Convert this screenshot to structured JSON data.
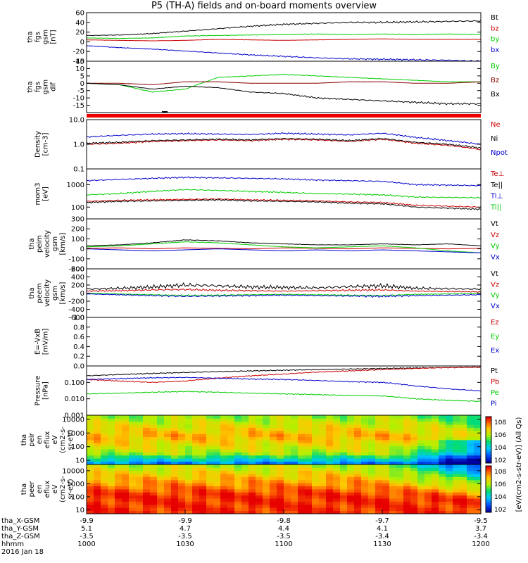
{
  "title": "P5 (TH-A) fields and on-board moments overview",
  "date_label": "2016 Jan 18",
  "colorbar_label": "[eV/(cm^2-s-str-eV)] (All Qs)",
  "colorbar_ticks": [
    "10^8",
    "10^6",
    "10^4",
    "10^2"
  ],
  "chart_data": [
    {
      "type": "line",
      "ylabel": [
        "tha",
        "fgs",
        "gsm",
        "[nT]"
      ],
      "ylim": [
        -40,
        60
      ],
      "yscale": "linear",
      "yticks": [
        -40,
        -20,
        0,
        20,
        40,
        60
      ],
      "series": [
        {
          "name": "Bt",
          "color": "#000000",
          "values": [
            13,
            14,
            17,
            22,
            27,
            32,
            36,
            38,
            40,
            40,
            41,
            42,
            43
          ]
        },
        {
          "name": "bz",
          "color": "#cc0000",
          "values": [
            4,
            3,
            2,
            3,
            5,
            4,
            3,
            4,
            5,
            6,
            5,
            5,
            5
          ]
        },
        {
          "name": "by",
          "color": "#00cc00",
          "values": [
            8,
            7,
            8,
            12,
            13,
            14,
            15,
            16,
            15,
            16,
            15,
            16,
            15
          ]
        },
        {
          "name": "bx",
          "color": "#0000cc",
          "values": [
            -8,
            -12,
            -15,
            -19,
            -23,
            -27,
            -30,
            -33,
            -35,
            -36,
            -37,
            -38,
            -40
          ]
        }
      ]
    },
    {
      "type": "line",
      "ylabel": [
        "tha",
        "fgs",
        "gsm",
        "dif"
      ],
      "ylim": [
        -20,
        15
      ],
      "yscale": "linear",
      "yticks": [
        -15,
        -10,
        -5,
        0,
        5,
        10,
        15
      ],
      "series": [
        {
          "name": "By",
          "color": "#00cc00",
          "values": [
            0,
            -1,
            -6,
            -4,
            4,
            5,
            6,
            5,
            4,
            3,
            2,
            1,
            1
          ]
        },
        {
          "name": "Bz",
          "color": "#880000",
          "values": [
            0,
            0,
            -1,
            1,
            1,
            0,
            0,
            0,
            1,
            1,
            0,
            0,
            1
          ]
        },
        {
          "name": "Bx",
          "color": "#000000",
          "values": [
            0,
            -1,
            -4,
            -2,
            -3,
            -6,
            -7,
            -10,
            -11,
            -12,
            -13,
            -14,
            -14
          ]
        }
      ]
    },
    {
      "type": "line",
      "ylabel": [
        "Density",
        "[cm-3]"
      ],
      "ylim": [
        0.1,
        10
      ],
      "yscale": "log",
      "yticks": [
        0.1,
        1.0,
        10.0
      ],
      "ytick_labels": [
        "0.1",
        "1.0",
        "10.0"
      ],
      "series": [
        {
          "name": "Ne",
          "color": "#cc0000",
          "values": [
            1.0,
            1.1,
            1.3,
            1.4,
            1.5,
            1.4,
            1.6,
            1.5,
            1.3,
            1.6,
            1.1,
            0.9,
            0.6
          ]
        },
        {
          "name": "Ni",
          "color": "#000000",
          "values": [
            1.1,
            1.2,
            1.4,
            1.5,
            1.6,
            1.5,
            1.7,
            1.6,
            1.4,
            1.7,
            1.2,
            1.0,
            0.7
          ]
        },
        {
          "name": "Npot",
          "color": "#0000cc",
          "values": [
            2.0,
            2.3,
            2.6,
            2.7,
            2.6,
            2.5,
            2.8,
            2.6,
            2.4,
            2.8,
            1.9,
            1.4,
            1.0
          ]
        }
      ]
    },
    {
      "type": "line",
      "ylabel": [
        "mom3",
        "[eV]"
      ],
      "ylim": [
        30,
        5000
      ],
      "yscale": "log",
      "yticks": [
        100,
        1000
      ],
      "ytick_labels": [
        "100",
        "1000"
      ],
      "series": [
        {
          "name": "Te⊥",
          "color": "#cc0000",
          "values": [
            180,
            200,
            210,
            220,
            230,
            210,
            200,
            190,
            170,
            160,
            120,
            110,
            100
          ]
        },
        {
          "name": "Te||",
          "color": "#000000",
          "values": [
            160,
            180,
            190,
            200,
            210,
            190,
            180,
            170,
            150,
            140,
            100,
            90,
            80
          ]
        },
        {
          "name": "Ti⊥",
          "color": "#0000cc",
          "values": [
            1500,
            1700,
            1900,
            2100,
            2000,
            1900,
            1800,
            1600,
            1500,
            1400,
            1000,
            950,
            900
          ]
        },
        {
          "name": "Ti||",
          "color": "#00cc00",
          "values": [
            350,
            400,
            500,
            600,
            550,
            500,
            450,
            400,
            380,
            350,
            280,
            270,
            260
          ]
        }
      ]
    },
    {
      "type": "line",
      "ylabel": [
        "tha",
        "peim",
        "velocity",
        "gsm",
        "[km/s]"
      ],
      "ylim": [
        -200,
        300
      ],
      "yscale": "linear",
      "yticks": [
        -200,
        -100,
        0,
        100,
        200,
        300
      ],
      "series": [
        {
          "name": "Vt",
          "color": "#000000",
          "values": [
            30,
            40,
            60,
            90,
            80,
            60,
            50,
            40,
            40,
            50,
            40,
            50,
            30
          ]
        },
        {
          "name": "Vz",
          "color": "#cc0000",
          "values": [
            5,
            10,
            0,
            10,
            5,
            0,
            10,
            5,
            0,
            10,
            5,
            0,
            5
          ]
        },
        {
          "name": "Vy",
          "color": "#00cc00",
          "values": [
            20,
            30,
            50,
            70,
            60,
            40,
            20,
            10,
            20,
            30,
            10,
            -20,
            -40
          ]
        },
        {
          "name": "Vx",
          "color": "#0000cc",
          "values": [
            0,
            -10,
            -20,
            -10,
            0,
            -10,
            -20,
            -10,
            -20,
            -10,
            -20,
            -30,
            -40
          ]
        }
      ]
    },
    {
      "type": "line",
      "ylabel": [
        "tha",
        "peem",
        "velocity",
        "gsm",
        "[km/s]"
      ],
      "ylim": [
        -600,
        600
      ],
      "yscale": "linear",
      "yticks": [
        -600,
        -400,
        -200,
        0,
        200,
        400,
        600
      ],
      "series": [
        {
          "name": "Vt",
          "color": "#000000",
          "values": [
            100,
            120,
            150,
            200,
            180,
            150,
            140,
            130,
            160,
            180,
            120,
            110,
            100
          ]
        },
        {
          "name": "Vz",
          "color": "#cc0000",
          "values": [
            50,
            60,
            80,
            90,
            70,
            60,
            50,
            60,
            70,
            80,
            50,
            40,
            30
          ]
        },
        {
          "name": "Vy",
          "color": "#00cc00",
          "values": [
            0,
            -20,
            -40,
            -60,
            -50,
            -40,
            -30,
            -40,
            -50,
            -60,
            -30,
            -20,
            -10
          ]
        },
        {
          "name": "Vx",
          "color": "#0000cc",
          "values": [
            -20,
            -40,
            -60,
            -80,
            -70,
            -60,
            -50,
            -60,
            -70,
            -80,
            -60,
            -50,
            -40
          ]
        }
      ]
    },
    {
      "type": "line",
      "ylabel": [
        "E=-VxB",
        "[mV/m]"
      ],
      "ylim": [
        0,
        1
      ],
      "yscale": "linear",
      "yticks": [
        0.0,
        0.2,
        0.4,
        0.6,
        0.8,
        1.0
      ],
      "ytick_labels": [
        "0.0",
        "0.2",
        "0.4",
        "0.6",
        "0.8",
        "1.0"
      ],
      "series": [
        {
          "name": "Ez",
          "color": "#cc0000",
          "values": []
        },
        {
          "name": "Ey",
          "color": "#00cc00",
          "values": []
        },
        {
          "name": "Ex",
          "color": "#0000cc",
          "values": []
        }
      ]
    },
    {
      "type": "line",
      "ylabel": [
        "Pressure",
        "[nPa]"
      ],
      "ylim": [
        0.001,
        1
      ],
      "yscale": "log",
      "yticks": [
        0.001,
        0.01,
        0.1
      ],
      "ytick_labels": [
        "0.001",
        "0.010",
        "0.100"
      ],
      "series": [
        {
          "name": "Pt",
          "color": "#000000",
          "values": [
            0.25,
            0.3,
            0.35,
            0.4,
            0.45,
            0.5,
            0.55,
            0.6,
            0.65,
            0.7,
            0.75,
            0.8,
            0.85
          ]
        },
        {
          "name": "Pb",
          "color": "#cc0000",
          "values": [
            0.15,
            0.12,
            0.1,
            0.12,
            0.18,
            0.25,
            0.32,
            0.42,
            0.5,
            0.6,
            0.7,
            0.8,
            0.85
          ]
        },
        {
          "name": "Pe",
          "color": "#00cc00",
          "values": [
            0.02,
            0.022,
            0.025,
            0.028,
            0.025,
            0.022,
            0.02,
            0.018,
            0.016,
            0.015,
            0.01,
            0.008,
            0.007
          ]
        },
        {
          "name": "Pi",
          "color": "#0000cc",
          "values": [
            0.15,
            0.17,
            0.19,
            0.2,
            0.18,
            0.16,
            0.15,
            0.13,
            0.11,
            0.1,
            0.06,
            0.04,
            0.03
          ]
        }
      ]
    },
    {
      "type": "heatmap",
      "ylabel": [
        "tha",
        "peir",
        "en",
        "eflux",
        "eV",
        "(cm^2-s-",
        "sr-eV)"
      ],
      "ylim": [
        5,
        20000
      ],
      "yscale": "log",
      "yticks": [
        10,
        100,
        1000,
        10000
      ],
      "ytick_labels": [
        "10",
        "100",
        "1000",
        "10000"
      ]
    },
    {
      "type": "heatmap",
      "ylabel": [
        "tha",
        "peer",
        "en",
        "eflux",
        "eV",
        "(cm^2-s-",
        "sr-eV)"
      ],
      "ylim": [
        5,
        30000
      ],
      "yscale": "log",
      "yticks": [
        10,
        100,
        1000,
        10000
      ],
      "ytick_labels": [
        "10",
        "100",
        "1000",
        "10000"
      ]
    }
  ],
  "x_axis": {
    "rows": [
      {
        "label": "tha_X-GSM",
        "values": [
          "-9.9",
          "-9.9",
          "-9.8",
          "-9.7",
          "-9.5"
        ]
      },
      {
        "label": "tha_Y-GSM",
        "values": [
          "5.1",
          "4.7",
          "4.4",
          "4.1",
          "3.7"
        ]
      },
      {
        "label": "tha_Z-GSM",
        "values": [
          "-3.5",
          "-3.5",
          "-3.5",
          "-3.4",
          "-3.4"
        ]
      },
      {
        "label": "hhmm",
        "values": [
          "1000",
          "1030",
          "1100",
          "1130",
          "1200"
        ]
      }
    ]
  }
}
